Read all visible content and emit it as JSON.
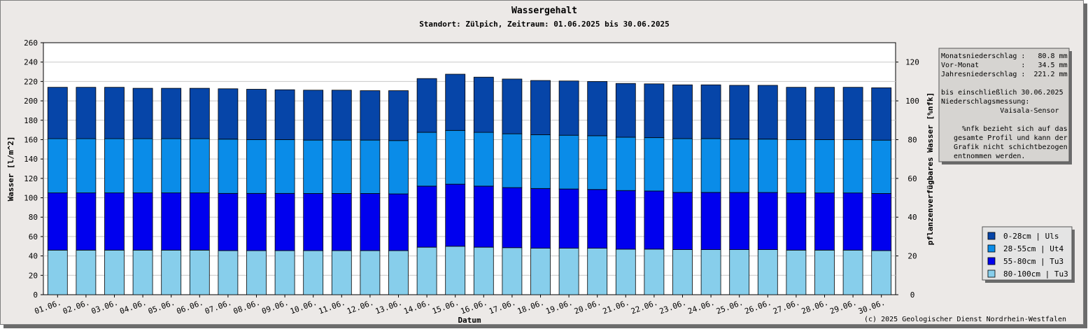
{
  "title": "Wassergehalt",
  "subtitle": "Standort: Zülpich, Zeitraum: 01.06.2025 bis 30.06.2025",
  "copyright": "(c) 2025 Geologischer Dienst Nordrhein-Westfalen",
  "info_box": {
    "lines": [
      "Monatsniederschlag :   80.8 mm",
      "Vor-Monat          :   34.5 mm",
      "Jahresniederschlag :  221.2 mm",
      "",
      "bis einschließlich 30.06.2025",
      "Niederschlagsmessung:",
      "              Vaisala-Sensor",
      "",
      "     %nfk bezieht sich auf das",
      "   gesamte Profil und kann der",
      "   Grafik nicht schichtbezogen",
      "   entnommen werden."
    ]
  },
  "chart_data": {
    "type": "bar",
    "stacked": true,
    "title": "Wassergehalt",
    "subtitle": "Standort: Zülpich, Zeitraum: 01.06.2025 bis 30.06.2025",
    "xlabel": "Datum",
    "ylabel": "Wasser [l/m^2]",
    "y2label": "pflanzenverfügbares Wasser [%nfk]",
    "ylim": [
      0,
      260
    ],
    "y2lim": [
      0,
      130
    ],
    "yticks": [
      0,
      20,
      40,
      60,
      80,
      100,
      120,
      140,
      160,
      180,
      200,
      220,
      240,
      260
    ],
    "y2ticks": [
      0,
      20,
      40,
      60,
      80,
      100,
      120
    ],
    "grid": true,
    "legend_position": "bottom-right",
    "categories": [
      "01.06.",
      "02.06.",
      "03.06.",
      "04.06.",
      "05.06.",
      "06.06.",
      "07.06.",
      "08.06.",
      "09.06.",
      "10.06.",
      "11.06.",
      "12.06.",
      "13.06.",
      "14.06.",
      "15.06.",
      "16.06.",
      "17.06.",
      "18.06.",
      "19.06.",
      "20.06.",
      "21.06.",
      "22.06.",
      "23.06.",
      "24.06.",
      "25.06.",
      "26.06.",
      "27.06.",
      "28.06.",
      "29.06.",
      "30.06."
    ],
    "series": [
      {
        "name": "80-100cm | Tu3",
        "color": "#87ceeb",
        "values": [
          46,
          46,
          46,
          46,
          46,
          46,
          45.5,
          45.5,
          45.5,
          45.5,
          45.5,
          45.5,
          45.5,
          49,
          50,
          49,
          48.5,
          48,
          48,
          48,
          47,
          47,
          46.5,
          46.5,
          46.5,
          46.5,
          46,
          46,
          46,
          45.5
        ]
      },
      {
        "name": "55-80cm | Tu3",
        "color": "#0000ee",
        "values": [
          59,
          59,
          59,
          59,
          59,
          59,
          59,
          59,
          59,
          59,
          59,
          59,
          58.5,
          63,
          64,
          63,
          62,
          61.5,
          61,
          60.5,
          60.5,
          60,
          59,
          59,
          59,
          59,
          59,
          59,
          59,
          59
        ]
      },
      {
        "name": "28-55cm | Ut4",
        "color": "#0a8ce8",
        "values": [
          56,
          56,
          56,
          56,
          56,
          56,
          56,
          55.5,
          55.5,
          55,
          55,
          55,
          55,
          55.5,
          55.5,
          55.5,
          55.5,
          55.5,
          55.5,
          55.5,
          55,
          55,
          55.5,
          55.5,
          55,
          55,
          55,
          55,
          55,
          55
        ]
      },
      {
        "name": "0-28cm | Uls",
        "color": "#0645a8",
        "values": [
          53,
          53,
          53,
          52,
          52,
          52,
          52,
          52,
          51.5,
          51.5,
          51.5,
          51,
          51.5,
          55.5,
          58,
          57,
          56.5,
          56,
          56,
          56,
          55.5,
          55.5,
          55.5,
          55.5,
          55.5,
          55.5,
          54,
          54,
          54,
          54
        ]
      }
    ]
  }
}
